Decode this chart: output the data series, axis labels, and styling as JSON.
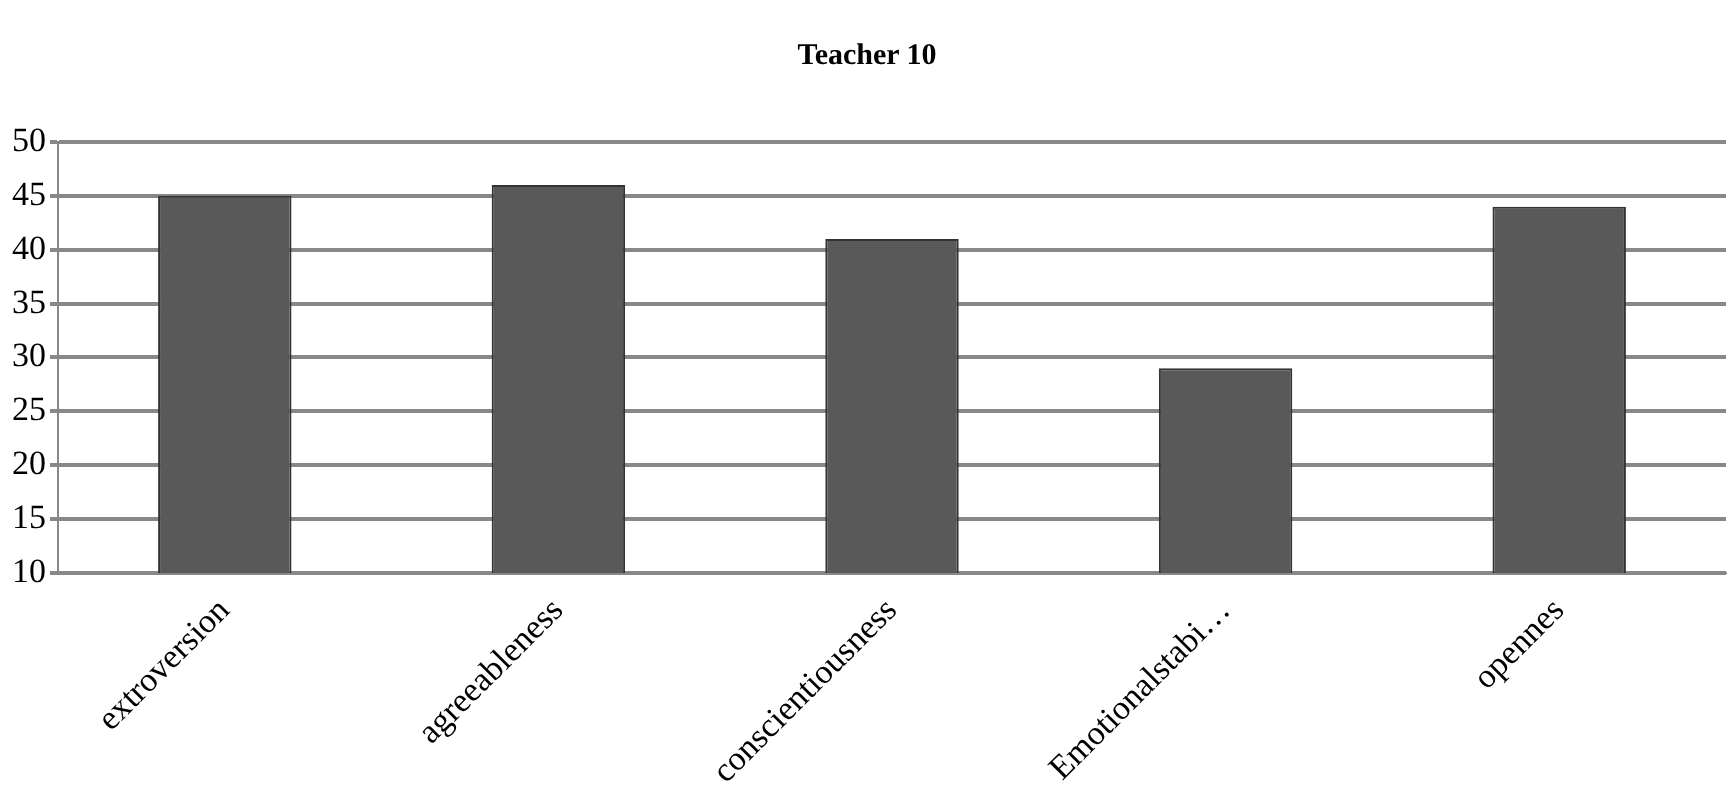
{
  "chart_data": {
    "type": "bar",
    "title": "Teacher 10",
    "categories": [
      "extroversion",
      "agreeableness",
      "conscientiousness",
      "Emotionalstabi…",
      "opennes"
    ],
    "values": [
      45,
      46,
      41,
      29,
      44
    ],
    "color": "#595959",
    "ylim": [
      10,
      50
    ],
    "yticks": [
      10,
      15,
      20,
      25,
      30,
      35,
      40,
      45,
      50
    ],
    "grid": "y",
    "legend": false
  }
}
